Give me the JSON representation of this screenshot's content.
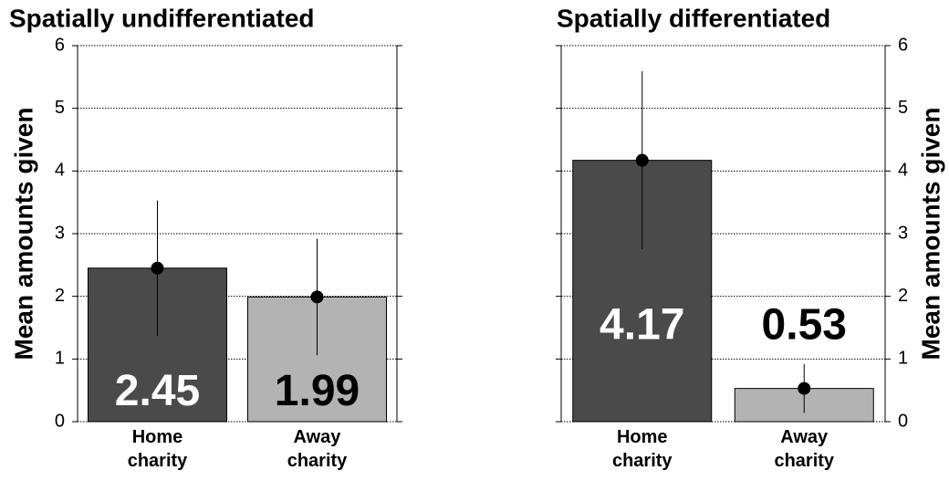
{
  "chart_data": [
    {
      "type": "bar",
      "title": "Spatially undifferentiated",
      "ylabel": "Mean amounts given",
      "yaxis_side": "left",
      "categories": [
        "Home charity",
        "Away charity"
      ],
      "values": [
        2.45,
        1.99
      ],
      "errors": [
        1.08,
        0.93
      ],
      "colors": [
        "#4a4a4a",
        "#b3b3b3"
      ],
      "label_colors": [
        "#ffffff",
        "#000000"
      ],
      "ylim": [
        0,
        6
      ],
      "yticks": [
        0,
        1,
        2,
        3,
        4,
        5,
        6
      ],
      "grid": true
    },
    {
      "type": "bar",
      "title": "Spatially differentiated",
      "ylabel": "Mean amounts given",
      "yaxis_side": "right",
      "categories": [
        "Home charity",
        "Away charity"
      ],
      "values": [
        4.17,
        0.53
      ],
      "errors": [
        1.42,
        0.39
      ],
      "colors": [
        "#4a4a4a",
        "#b3b3b3"
      ],
      "label_colors": [
        "#ffffff",
        "#000000"
      ],
      "ylim": [
        0,
        6
      ],
      "yticks": [
        0,
        1,
        2,
        3,
        4,
        5,
        6
      ],
      "grid": true
    }
  ]
}
